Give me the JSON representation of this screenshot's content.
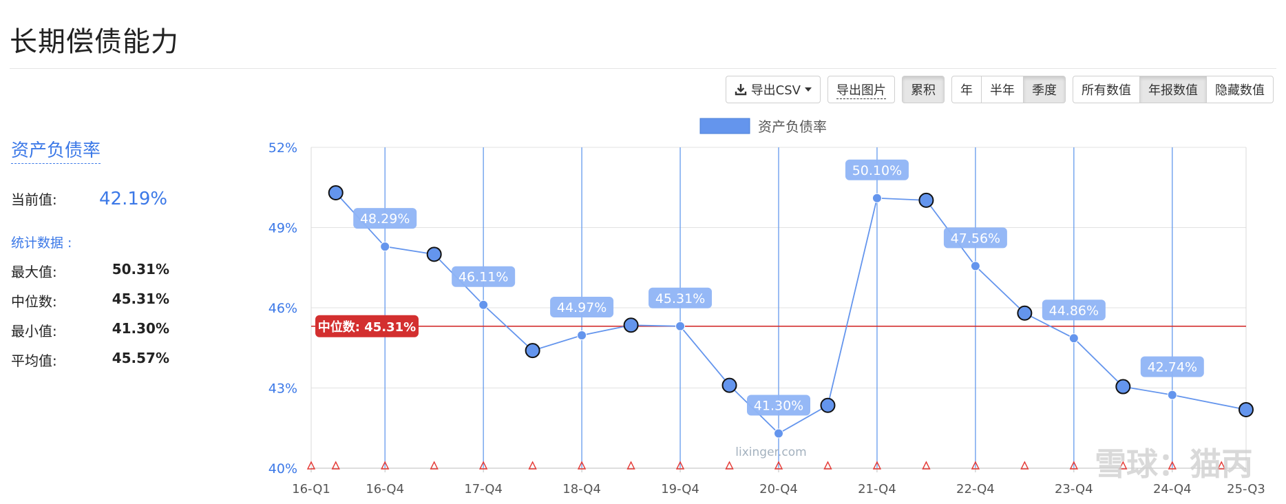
{
  "page": {
    "title": "长期偿债能力"
  },
  "toolbar": {
    "export_csv": "导出CSV",
    "export_image": "导出图片",
    "cumulative": "累积",
    "period_options": [
      "年",
      "半年",
      "季度"
    ],
    "period_active": 2,
    "value_options": [
      "所有数值",
      "年报数值",
      "隐藏数值"
    ],
    "value_active": 1
  },
  "side": {
    "metric_name": "资产负债率",
    "current_label": "当前值:",
    "current_value": "42.19%",
    "stats_title": "统计数据 :",
    "stats": [
      {
        "label": "最大值:",
        "value": "50.31%"
      },
      {
        "label": "中位数:",
        "value": "45.31%"
      },
      {
        "label": "最小值:",
        "value": "41.30%"
      },
      {
        "label": "平均值:",
        "value": "45.57%"
      }
    ]
  },
  "chart_data": {
    "type": "line",
    "legend": [
      "资产负债率"
    ],
    "legend_position": "top-center",
    "ylim": [
      40,
      52
    ],
    "yticks": [
      "40%",
      "43%",
      "46%",
      "49%",
      "52%"
    ],
    "xticks": [
      "16-Q1",
      "16-Q4",
      "17-Q4",
      "18-Q4",
      "19-Q4",
      "20-Q4",
      "21-Q4",
      "22-Q4",
      "23-Q4",
      "24-Q4",
      "25-Q3"
    ],
    "series": [
      {
        "name": "资产负债率",
        "color": "#6495ed",
        "points": [
          {
            "x": "16-Q2",
            "y": 50.3,
            "marker": "large"
          },
          {
            "x": "16-Q4",
            "y": 48.29,
            "label": "48.29%"
          },
          {
            "x": "17-Q2",
            "y": 48.0,
            "marker": "large"
          },
          {
            "x": "17-Q4",
            "y": 46.11,
            "label": "46.11%"
          },
          {
            "x": "18-Q2",
            "y": 44.4,
            "marker": "large"
          },
          {
            "x": "18-Q4",
            "y": 44.97,
            "label": "44.97%"
          },
          {
            "x": "19-Q2",
            "y": 45.35,
            "marker": "large"
          },
          {
            "x": "19-Q4",
            "y": 45.31,
            "label": "45.31%"
          },
          {
            "x": "20-Q2",
            "y": 43.1,
            "marker": "large"
          },
          {
            "x": "20-Q4",
            "y": 41.3,
            "label": "41.30%"
          },
          {
            "x": "21-Q2",
            "y": 42.35,
            "marker": "large"
          },
          {
            "x": "21-Q4",
            "y": 50.1,
            "label": "50.10%"
          },
          {
            "x": "22-Q2",
            "y": 50.02,
            "marker": "large"
          },
          {
            "x": "22-Q4",
            "y": 47.56,
            "label": "47.56%"
          },
          {
            "x": "23-Q2",
            "y": 45.8,
            "marker": "large"
          },
          {
            "x": "23-Q4",
            "y": 44.86,
            "label": "44.86%"
          },
          {
            "x": "24-Q2",
            "y": 43.05,
            "marker": "large"
          },
          {
            "x": "24-Q4",
            "y": 42.74,
            "label": "42.74%"
          },
          {
            "x": "25-Q3",
            "y": 42.19,
            "marker": "large"
          }
        ]
      }
    ],
    "median": {
      "value": 45.31,
      "label": "中位数: 45.31%",
      "color": "#d32f2f"
    },
    "grid": true,
    "triangle_markers_color": "#e53935"
  },
  "watermark": {
    "site": "lixinger.com",
    "corner": "雪球：猫丙"
  }
}
